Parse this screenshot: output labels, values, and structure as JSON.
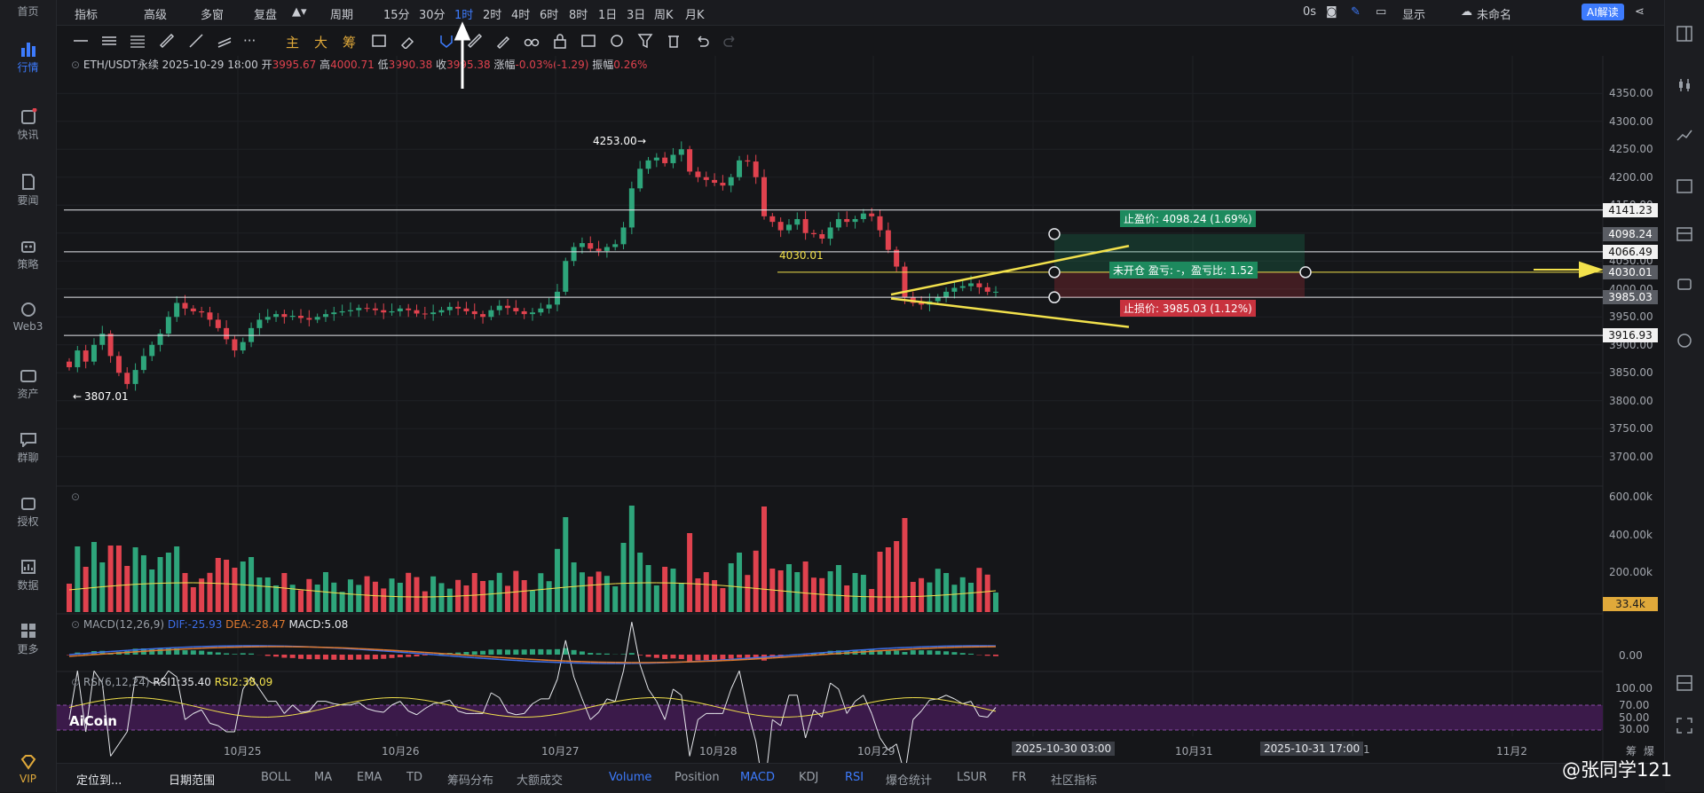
{
  "sidebar": {
    "items": [
      {
        "label": "首页",
        "icon": "home-icon"
      },
      {
        "label": "行情",
        "icon": "chart-bars-icon",
        "active": true
      },
      {
        "label": "快讯",
        "icon": "news-flash-icon"
      },
      {
        "label": "要闻",
        "icon": "document-icon"
      },
      {
        "label": "策略",
        "icon": "robot-icon"
      },
      {
        "label": "Web3",
        "icon": "web3-icon"
      },
      {
        "label": "资产",
        "icon": "wallet-icon"
      },
      {
        "label": "群聊",
        "icon": "chat-icon"
      },
      {
        "label": "授权",
        "icon": "key-icon"
      },
      {
        "label": "数据",
        "icon": "data-chart-icon"
      },
      {
        "label": "更多",
        "icon": "grid-icon"
      },
      {
        "label": "VIP",
        "icon": "diamond-icon"
      }
    ]
  },
  "topbar": {
    "left": [
      "指标",
      "高级",
      "多窗",
      "复盘"
    ],
    "period_label": "周期",
    "periods": [
      "15分",
      "30分",
      "1时",
      "2时",
      "4时",
      "6时",
      "8时",
      "1日",
      "3日",
      "周K",
      "月K"
    ],
    "active_period": "1时",
    "right": {
      "delay": "0s",
      "display": "显示",
      "layout_name": "未命名",
      "ai_button": "AI解读"
    }
  },
  "drawbar": {
    "text_tools": [
      "主",
      "大",
      "筹"
    ]
  },
  "info": {
    "symbol": "ETH/USDT永续",
    "time": "2025-10-29 18:00",
    "open_label": "开",
    "open": "3995.67",
    "high_label": "高",
    "high": "4000.71",
    "low_label": "低",
    "low": "3990.38",
    "close_label": "收",
    "close": "3995.38",
    "change_label": "涨幅",
    "change": "-0.03%(-1.29)",
    "amp_label": "振幅",
    "amp": "0.26%"
  },
  "chart_data": {
    "type": "candlestick",
    "timeframe": "1h",
    "y_ticks": [
      4350,
      4300,
      4250,
      4200,
      4150,
      4100,
      4050,
      4000,
      3950,
      3900,
      3850,
      3800,
      3750,
      3700
    ],
    "ylim": [
      3660,
      4390
    ],
    "x_ticks": [
      "10月25",
      "10月26",
      "10月27",
      "10月28",
      "10月29",
      "10月31",
      "1",
      "11月2"
    ],
    "ohlc_close_trace": [
      3860,
      3890,
      3870,
      3900,
      3920,
      3880,
      3850,
      3830,
      3855,
      3880,
      3900,
      3920,
      3950,
      3975,
      3965,
      3960,
      3958,
      3945,
      3930,
      3910,
      3890,
      3905,
      3930,
      3945,
      3950,
      3955,
      3950,
      3952,
      3948,
      3945,
      3950,
      3955,
      3958,
      3960,
      3962,
      3966,
      3965,
      3962,
      3958,
      3960,
      3965,
      3962,
      3956,
      3955,
      3958,
      3962,
      3968,
      3965,
      3960,
      3955,
      3950,
      3962,
      3970,
      3966,
      3960,
      3955,
      3958,
      3965,
      3972,
      3995,
      4050,
      4075,
      4082,
      4072,
      4068,
      4075,
      4080,
      4110,
      4180,
      4215,
      4230,
      4235,
      4225,
      4240,
      4250,
      4210,
      4200,
      4195,
      4190,
      4185,
      4200,
      4230,
      4228,
      4200,
      4130,
      4120,
      4105,
      4115,
      4125,
      4100,
      4098,
      4090,
      4110,
      4125,
      4120,
      4125,
      4135,
      4130,
      4105,
      4070,
      4040,
      3985,
      3975,
      3972,
      3978,
      3985,
      3995,
      4002,
      4005,
      4010,
      4003,
      3995,
      3995
    ],
    "annotations": {
      "swing_high": "4253.00",
      "swing_low": "3807.01",
      "level_label": "4030.01"
    },
    "horizontal_levels": [
      "4141.23",
      "4066.49",
      "3985.03",
      "3916.93"
    ],
    "price_boxes": [
      {
        "value": "4141.23",
        "style": "white"
      },
      {
        "value": "4098.24",
        "style": "gray"
      },
      {
        "value": "4066.49",
        "style": "white"
      },
      {
        "value": "4030.01",
        "style": "gray"
      },
      {
        "value": "3985.03",
        "style": "gray"
      },
      {
        "value": "3916.93",
        "style": "white"
      }
    ],
    "position_tool": {
      "take_profit": "止盈价: 4098.24 (1.69%)",
      "status": "未开仓 盈亏: -，盈亏比: 1.52",
      "stop_loss": "止损价: 3985.03 (1.12%)"
    },
    "volume": {
      "y_ticks": [
        "600.00k",
        "400.00k",
        "200.00k"
      ],
      "last": "33.4k"
    },
    "macd": {
      "label": "MACD(12,26,9)",
      "dif": "DIF:-25.93",
      "dea": "DEA:-28.47",
      "macd": "MACD:5.08",
      "zero": "0.00"
    },
    "rsi": {
      "label": "RSI(6,12,24)",
      "rsi1": "RSI1:35.40",
      "rsi2": "RSI2:38.09",
      "ticks": [
        "100.00",
        "70.00",
        "50.00",
        "30.00"
      ]
    },
    "time_labels": [
      "2025-10-30 03:00",
      "2025-10-31 17:00"
    ]
  },
  "watermark": {
    "brand": "AiCoin",
    "author": "@张同学121"
  },
  "bottombar": {
    "left": [
      "定位到...",
      "日期范围"
    ],
    "tabs": [
      "BOLL",
      "MA",
      "EMA",
      "TD",
      "筹码分布",
      "大额成交",
      "Volume",
      "Position",
      "MACD",
      "KDJ",
      "RSI",
      "爆仓统计",
      "LSUR",
      "FR",
      "社区指标"
    ],
    "active_tabs": [
      "Volume",
      "MACD",
      "RSI"
    ],
    "corner": [
      "筹",
      "爆"
    ]
  },
  "colors": {
    "up": "#2ea57b",
    "down": "#e0424e",
    "accent": "#3d7bfd",
    "trend": "#f2e14c"
  }
}
